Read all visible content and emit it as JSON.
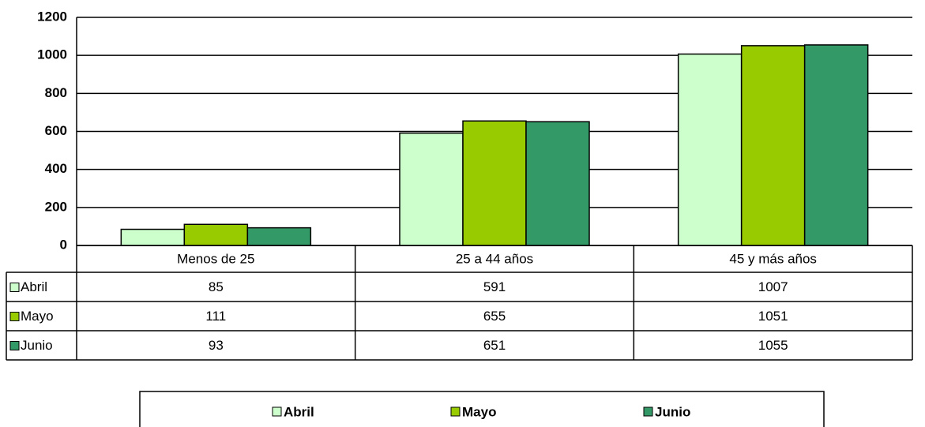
{
  "chart_data": {
    "type": "bar",
    "categories": [
      "Menos de 25",
      "25 a 44 años",
      "45 y más años"
    ],
    "series": [
      {
        "name": "Abril",
        "color": "#ccffcc",
        "values": [
          85,
          591,
          1007
        ]
      },
      {
        "name": "Mayo",
        "color": "#99cc00",
        "values": [
          111,
          655,
          1051
        ]
      },
      {
        "name": "Junio",
        "color": "#339966",
        "values": [
          93,
          651,
          1055
        ]
      }
    ],
    "ylim": [
      0,
      1200
    ],
    "yticks": [
      0,
      200,
      400,
      600,
      800,
      1000,
      1200
    ],
    "grid": true,
    "legend": "bottom",
    "data_table": true
  }
}
